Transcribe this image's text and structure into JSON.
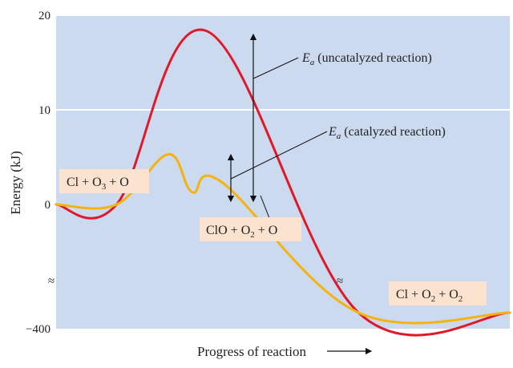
{
  "chart_data": {
    "type": "line",
    "title": "",
    "xlabel": "Progress of reaction",
    "ylabel": "Energy (kJ)",
    "yticks": [
      {
        "label": "20",
        "value": 20
      },
      {
        "label": "10",
        "value": 10
      },
      {
        "label": "0",
        "value": 0
      },
      {
        "label": "−400",
        "value": -400
      }
    ],
    "axis_break_symbol": "≈",
    "colors": {
      "plot_bg": "#ccdaf0",
      "grid": "#ffffff",
      "uncatalyzed": "#e0192a",
      "catalyzed": "#f5b30f",
      "label_box": "#fbe3cf"
    },
    "series": [
      {
        "id": "uncatalyzed",
        "x": [
          0,
          0.2,
          0.5,
          1.0,
          1.5
        ],
        "y": [
          0,
          0,
          18.3,
          -400,
          -400
        ]
      },
      {
        "id": "catalyzed",
        "x": [
          0,
          0.2,
          0.37,
          0.45,
          0.55,
          1.0,
          1.5
        ],
        "y": [
          0,
          0,
          5.3,
          1.3,
          2.3,
          -400,
          -400
        ]
      }
    ],
    "annotations": {
      "ea_uncat": {
        "symbol": "E",
        "subscript": "a",
        "text": " (uncatalyzed reaction)"
      },
      "ea_cat": {
        "symbol": "E",
        "subscript": "a",
        "text": " (catalyzed reaction)"
      }
    },
    "species_labels": {
      "reactants": {
        "parts": [
          [
            "Cl + O",
            ""
          ],
          [
            "3",
            "sub"
          ],
          [
            " + O",
            ""
          ]
        ]
      },
      "intermediate": {
        "parts": [
          [
            "ClO + O",
            ""
          ],
          [
            "2",
            "sub"
          ],
          [
            " + O",
            ""
          ]
        ]
      },
      "products": {
        "parts": [
          [
            "Cl + O",
            ""
          ],
          [
            "2",
            "sub"
          ],
          [
            " + O",
            ""
          ],
          [
            "2",
            "sub"
          ]
        ]
      }
    }
  }
}
